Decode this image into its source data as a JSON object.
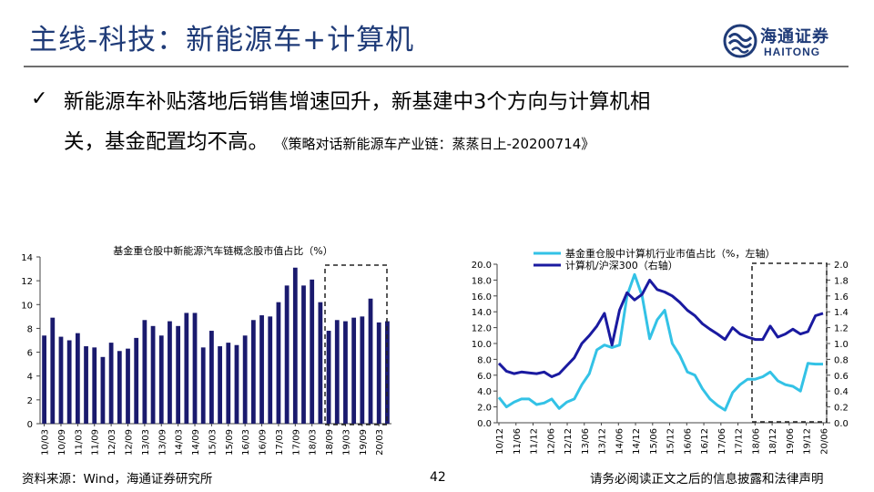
{
  "header": {
    "title": "主线-科技：新能源车+计算机",
    "logo_cn": "海通证券",
    "logo_en": "HAITONG"
  },
  "bullet": {
    "mark": "✓",
    "line1": "新能源车补贴落地后销售增速回升，新基建中3个方向与计算机相",
    "line2": "关，基金配置均不高。",
    "ref": "《策略对话新能源车产业链：蒸蒸日上-20200714》"
  },
  "footer": {
    "source": "资料来源：Wind，海通证券研究所",
    "page": "42",
    "disclaimer": "请务必阅读正文之后的信息披露和法律声明"
  },
  "colors": {
    "title": "#1f3b78",
    "bar": "#1a1a6e",
    "line_light": "#33c2e6",
    "line_dark": "#1a1aa0"
  },
  "chart_data": [
    {
      "type": "bar",
      "title": "基金重仓股中新能源汽车链概念股市值占比（%）",
      "ylim": [
        0,
        14
      ],
      "yticks": [
        "0",
        "2",
        "4",
        "6",
        "8",
        "10",
        "12",
        "14"
      ],
      "xtick_labels": [
        "10/03",
        "10/09",
        "11/03",
        "11/09",
        "12/03",
        "12/09",
        "13/03",
        "13/09",
        "14/03",
        "14/09",
        "15/03",
        "15/09",
        "16/03",
        "16/09",
        "17/03",
        "17/09",
        "18/03",
        "18/09",
        "19/03",
        "19/09",
        "20/03"
      ],
      "values": [
        7.4,
        8.9,
        7.3,
        7.0,
        7.6,
        6.5,
        6.4,
        5.6,
        6.8,
        6.1,
        6.3,
        7.2,
        8.7,
        8.2,
        7.4,
        8.6,
        8.2,
        9.3,
        9.3,
        6.4,
        7.8,
        6.5,
        6.8,
        6.6,
        7.4,
        8.7,
        9.1,
        9.0,
        10.2,
        11.6,
        13.1,
        11.6,
        12.1,
        10.2,
        7.8,
        8.7,
        8.6,
        8.9,
        9.0,
        10.5,
        8.5,
        8.6
      ],
      "series": [
        {
          "name": "",
          "values": []
        }
      ]
    },
    {
      "type": "line",
      "ylim_left": [
        0,
        20
      ],
      "ylim_right": [
        0,
        2
      ],
      "yticks_left": [
        "0.0",
        "2.0",
        "4.0",
        "6.0",
        "8.0",
        "10.0",
        "12.0",
        "14.0",
        "16.0",
        "18.0",
        "20.0"
      ],
      "yticks_right": [
        "0.0",
        "0.2",
        "0.4",
        "0.6",
        "0.8",
        "1.0",
        "1.2",
        "1.4",
        "1.6",
        "1.8",
        "2.0"
      ],
      "xtick_labels": [
        "10/12",
        "11/06",
        "11/12",
        "12/06",
        "12/12",
        "13/06",
        "13/12",
        "14/06",
        "14/12",
        "15/06",
        "15/12",
        "16/06",
        "16/12",
        "17/06",
        "17/12",
        "18/06",
        "18/12",
        "19/06",
        "19/12",
        "20/06"
      ],
      "series": [
        {
          "name": "基金重仓股中计算机行业市值占比（%，左轴）",
          "axis": "left",
          "values": [
            3.2,
            2.0,
            2.6,
            3.0,
            3.0,
            2.3,
            2.5,
            3.0,
            1.8,
            2.6,
            3.0,
            4.8,
            6.2,
            9.2,
            9.8,
            9.5,
            9.8,
            16.0,
            18.7,
            16.0,
            10.6,
            13.0,
            14.2,
            10.0,
            8.5,
            6.4,
            6.0,
            4.3,
            3.0,
            2.2,
            1.6,
            3.8,
            4.8,
            5.5,
            5.5,
            5.8,
            6.4,
            5.3,
            4.8,
            4.6,
            4.0,
            7.5,
            7.4,
            7.4
          ]
        },
        {
          "name": "计算机/沪深300（右轴）",
          "axis": "right",
          "values": [
            0.75,
            0.65,
            0.62,
            0.64,
            0.63,
            0.62,
            0.64,
            0.58,
            0.62,
            0.72,
            0.82,
            1.0,
            1.1,
            1.22,
            1.38,
            0.98,
            1.42,
            1.64,
            1.55,
            1.62,
            1.8,
            1.68,
            1.65,
            1.6,
            1.52,
            1.42,
            1.35,
            1.25,
            1.18,
            1.12,
            1.05,
            1.2,
            1.12,
            1.08,
            1.05,
            1.05,
            1.22,
            1.08,
            1.12,
            1.18,
            1.12,
            1.15,
            1.35,
            1.38
          ]
        }
      ]
    }
  ]
}
